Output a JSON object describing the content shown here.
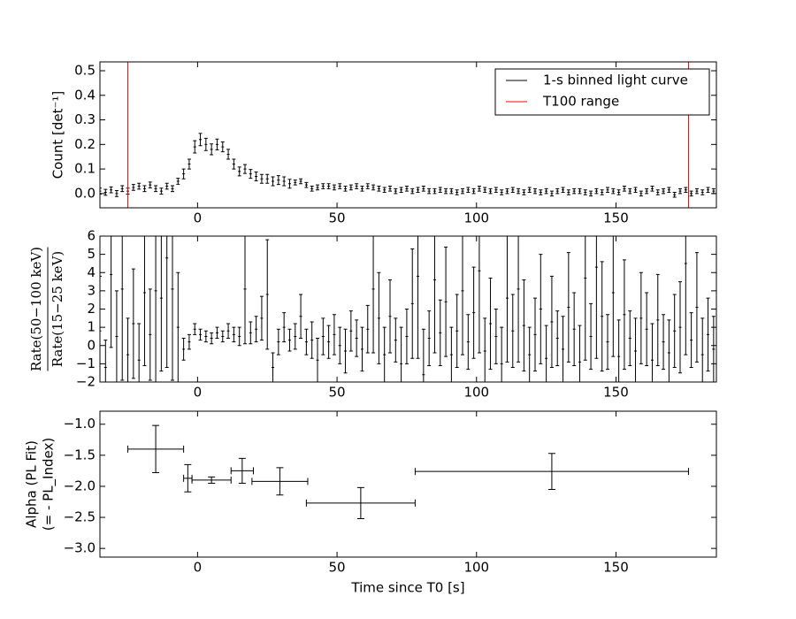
{
  "chart_data": [
    {
      "type": "errorbar",
      "ylabel": "Count [det⁻¹]",
      "xlim": [
        -35,
        186
      ],
      "xticks": [
        0,
        50,
        100,
        150
      ],
      "ylim": [
        -0.058,
        0.536
      ],
      "yticks": [
        {
          "value": 0,
          "label": "0.0"
        },
        {
          "value": 0.1,
          "label": "0.1"
        },
        {
          "value": 0.2,
          "label": "0.2"
        },
        {
          "value": 0.3,
          "label": "0.3"
        },
        {
          "value": 0.4,
          "label": "0.4"
        },
        {
          "value": 0.5,
          "label": "0.5"
        }
      ],
      "legend": "upper right",
      "series": [
        {
          "name": "1-s binned light curve",
          "color": "#000000",
          "x": [
            -35,
            -33,
            -31,
            -29,
            -27,
            -25,
            -23,
            -21,
            -19,
            -17,
            -15,
            -13,
            -11,
            -9,
            -7,
            -5,
            -3,
            -1,
            1,
            3,
            5,
            7,
            9,
            11,
            13,
            15,
            17,
            19,
            21,
            23,
            25,
            27,
            29,
            31,
            33,
            35,
            37,
            39,
            41,
            43,
            45,
            47,
            49,
            51,
            53,
            55,
            57,
            59,
            61,
            63,
            65,
            67,
            69,
            71,
            73,
            75,
            77,
            79,
            81,
            83,
            85,
            87,
            89,
            91,
            93,
            95,
            97,
            99,
            101,
            103,
            105,
            107,
            109,
            111,
            113,
            115,
            117,
            119,
            121,
            123,
            125,
            127,
            129,
            131,
            133,
            135,
            137,
            139,
            141,
            143,
            145,
            147,
            149,
            151,
            153,
            155,
            157,
            159,
            161,
            163,
            165,
            167,
            169,
            171,
            173,
            175,
            177,
            179,
            181,
            183,
            185
          ],
          "values": [
            0.01,
            0.005,
            0.015,
            0.0,
            0.02,
            0.01,
            0.025,
            0.03,
            0.02,
            0.035,
            0.02,
            0.01,
            0.03,
            0.02,
            0.05,
            0.08,
            0.12,
            0.19,
            0.22,
            0.2,
            0.18,
            0.2,
            0.19,
            0.16,
            0.12,
            0.09,
            0.1,
            0.08,
            0.07,
            0.06,
            0.06,
            0.05,
            0.055,
            0.05,
            0.04,
            0.045,
            0.05,
            0.035,
            0.02,
            0.025,
            0.03,
            0.03,
            0.025,
            0.03,
            0.02,
            0.025,
            0.03,
            0.02,
            0.03,
            0.025,
            0.02,
            0.015,
            0.02,
            0.01,
            0.015,
            0.02,
            0.01,
            0.015,
            0.02,
            0.01,
            0.01,
            0.015,
            0.01,
            0.01,
            0.005,
            0.01,
            0.015,
            0.01,
            0.02,
            0.015,
            0.01,
            0.015,
            0.005,
            0.01,
            0.015,
            0.01,
            0.005,
            0.015,
            0.01,
            0.005,
            0.01,
            0.0,
            0.01,
            0.015,
            0.005,
            0.01,
            0.01,
            0.005,
            0.0,
            0.01,
            0.005,
            0.015,
            0.01,
            0.005,
            0.02,
            0.01,
            0.015,
            0.0,
            0.01,
            0.02,
            0.005,
            0.01,
            0.015,
            -0.005,
            0.01,
            0.015,
            0.0,
            0.01,
            0.005,
            0.015,
            0.01
          ],
          "errors": [
            0.012,
            0.012,
            0.012,
            0.012,
            0.012,
            0.012,
            0.012,
            0.012,
            0.012,
            0.012,
            0.012,
            0.012,
            0.012,
            0.012,
            0.012,
            0.02,
            0.02,
            0.025,
            0.025,
            0.025,
            0.022,
            0.022,
            0.02,
            0.02,
            0.02,
            0.018,
            0.018,
            0.018,
            0.018,
            0.018,
            0.018,
            0.018,
            0.018,
            0.018,
            0.018,
            0.01,
            0.01,
            0.01,
            0.01,
            0.01,
            0.01,
            0.01,
            0.01,
            0.01,
            0.01,
            0.01,
            0.01,
            0.01,
            0.01,
            0.01,
            0.01,
            0.01,
            0.01,
            0.01,
            0.01,
            0.01,
            0.01,
            0.01,
            0.01,
            0.01,
            0.01,
            0.01,
            0.01,
            0.01,
            0.01,
            0.01,
            0.01,
            0.01,
            0.01,
            0.01,
            0.01,
            0.01,
            0.01,
            0.01,
            0.01,
            0.01,
            0.01,
            0.01,
            0.01,
            0.01,
            0.01,
            0.01,
            0.01,
            0.01,
            0.01,
            0.01,
            0.01,
            0.01,
            0.01,
            0.01,
            0.01,
            0.01,
            0.01,
            0.01,
            0.01,
            0.01,
            0.01,
            0.01,
            0.01,
            0.01,
            0.01,
            0.01,
            0.01,
            0.01,
            0.01,
            0.01,
            0.01,
            0.01,
            0.01,
            0.01,
            0.01
          ]
        },
        {
          "name": "T100 range",
          "color": "#ff0000",
          "type": "vline",
          "x": [
            -25,
            176
          ]
        }
      ]
    },
    {
      "type": "errorbar",
      "ylabel_numerator": "Rate(50−100 keV)",
      "ylabel_denominator": "Rate(15−25 keV)",
      "xlim": [
        -35,
        186
      ],
      "xticks": [
        0,
        50,
        100,
        150
      ],
      "ylim": [
        -2,
        6
      ],
      "yticks": [
        {
          "value": -2,
          "label": "−2"
        },
        {
          "value": -1,
          "label": "−1"
        },
        0,
        1,
        2,
        3,
        4,
        5,
        6
      ],
      "color": "#000000",
      "x": [
        -35,
        -33,
        -31,
        -29,
        -27,
        -25,
        -23,
        -21,
        -19,
        -17,
        -15,
        -13,
        -11,
        -9,
        -7,
        -5,
        -3,
        -1,
        1,
        3,
        5,
        7,
        9,
        11,
        13,
        15,
        17,
        19,
        21,
        23,
        25,
        27,
        29,
        31,
        33,
        35,
        37,
        39,
        41,
        43,
        45,
        47,
        49,
        51,
        53,
        55,
        57,
        59,
        61,
        63,
        65,
        67,
        69,
        71,
        73,
        75,
        77,
        79,
        81,
        83,
        85,
        87,
        89,
        91,
        93,
        95,
        97,
        99,
        101,
        103,
        105,
        107,
        109,
        111,
        113,
        115,
        117,
        119,
        121,
        123,
        125,
        127,
        129,
        131,
        133,
        135,
        137,
        139,
        141,
        143,
        145,
        147,
        149,
        151,
        153,
        155,
        157,
        159,
        161,
        163,
        165,
        167,
        169,
        171,
        173,
        175,
        177,
        179,
        181,
        183,
        185
      ],
      "values": [
        0.8,
        -1.2,
        3.9,
        0.5,
        3.1,
        -0.5,
        1.2,
        -0.8,
        2.9,
        0.6,
        3.0,
        2.6,
        4.8,
        3.1,
        1.0,
        -0.2,
        0.2,
        0.9,
        0.6,
        0.5,
        0.4,
        0.7,
        0.5,
        0.8,
        0.6,
        0.5,
        3.1,
        0.7,
        0.9,
        1.5,
        2.8,
        -1.2,
        0.2,
        1.0,
        0.3,
        0.5,
        1.6,
        0.2,
        0.3,
        -0.8,
        0.5,
        0.2,
        0.6,
        0.0,
        -0.3,
        0.8,
        0.4,
        -0.2,
        0.9,
        3.1,
        1.5,
        -0.5,
        1.6,
        0.3,
        -1.0,
        0.5,
        2.3,
        3.8,
        -1.6,
        0.4,
        3.6,
        0.7,
        2.4,
        -0.5,
        0.8,
        3.0,
        0.2,
        1.8,
        4.1,
        -0.3,
        1.2,
        0.5,
        -1.0,
        2.6,
        0.8,
        3.1,
        1.1,
        -0.5,
        0.6,
        2.0,
        -0.7,
        1.3,
        0.4,
        -0.2,
        2.1,
        0.9,
        -0.9,
        3.7,
        0.5,
        4.3,
        1.6,
        0.2,
        2.9,
        -0.6,
        1.7,
        0.4,
        -0.3,
        1.5,
        0.9,
        -0.8,
        1.4,
        0.2,
        -0.4,
        0.8,
        1.0,
        4.5,
        0.3,
        2.1,
        -0.5,
        0.6,
        -0.2
      ],
      "errors": [
        3.0,
        1.5,
        4,
        2.5,
        5,
        2,
        3,
        2,
        4,
        2.5,
        5,
        4,
        6,
        5,
        3,
        0.6,
        0.4,
        0.3,
        0.3,
        0.3,
        0.3,
        0.3,
        0.3,
        0.4,
        0.4,
        0.5,
        3,
        0.6,
        0.7,
        1.2,
        3,
        0.8,
        0.7,
        0.8,
        0.6,
        0.7,
        1.2,
        0.7,
        1.0,
        1.2,
        1.0,
        0.9,
        1.1,
        1.0,
        1.2,
        1.1,
        1.0,
        1.2,
        1.3,
        3.5,
        2.5,
        1.5,
        2.0,
        1.2,
        2.0,
        1.5,
        3.0,
        4.5,
        2.5,
        1.5,
        4.0,
        1.8,
        3.0,
        1.5,
        2.0,
        3.5,
        1.5,
        2.5,
        4.5,
        1.8,
        2.5,
        1.5,
        2.0,
        3.5,
        2.0,
        4.0,
        2.5,
        1.5,
        2.0,
        3.0,
        1.8,
        2.5,
        1.5,
        1.8,
        3.0,
        2.0,
        2.0,
        4.5,
        1.8,
        5.0,
        3.0,
        1.5,
        3.5,
        2.0,
        3.0,
        1.5,
        1.8,
        2.5,
        2.0,
        2.0,
        2.5,
        1.5,
        1.8,
        2.0,
        2.5,
        5.0,
        1.5,
        3.0,
        2.0,
        2.0,
        1.8
      ]
    },
    {
      "type": "errorbar",
      "ylabel": [
        "Alpha (PL Fit)",
        "(= - PL_Index)"
      ],
      "xlabel": "Time since T0 [s]",
      "xlim": [
        -35,
        186
      ],
      "xticks": [
        0,
        50,
        100,
        150
      ],
      "ylim": [
        -3.14,
        -0.79
      ],
      "yticks": [
        {
          "value": -3,
          "label": "−3.0"
        },
        {
          "value": -2.5,
          "label": "−2.5"
        },
        {
          "value": -2,
          "label": "−2.0"
        },
        {
          "value": -1.5,
          "label": "−1.5"
        },
        {
          "value": -1,
          "label": "−1.0"
        }
      ],
      "color": "#000000",
      "x": [
        -15,
        -3.5,
        5,
        16,
        29.5,
        58.5,
        127
      ],
      "xerr": [
        10,
        1.5,
        7,
        4,
        10,
        19.5,
        49
      ],
      "values": [
        -1.4,
        -1.87,
        -1.9,
        -1.75,
        -1.92,
        -2.27,
        -1.76
      ],
      "errors": [
        0.38,
        0.22,
        0.05,
        0.2,
        0.22,
        0.25,
        0.29
      ]
    }
  ]
}
